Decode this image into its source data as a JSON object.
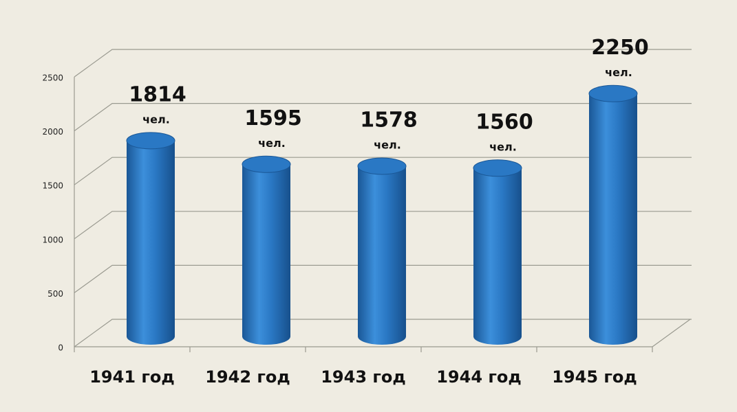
{
  "chart_data": {
    "type": "bar3d",
    "categories": [
      "1941 год",
      "1942 год",
      "1943 год",
      "1944 год",
      "1945 год"
    ],
    "values": [
      1814,
      1595,
      1578,
      1560,
      2250
    ],
    "unit_label": "чел.",
    "color": "#2a78c4",
    "ylim": [
      0,
      2500
    ],
    "yticks": [
      0,
      500,
      1000,
      1500,
      2000,
      2500
    ],
    "grid": true
  }
}
